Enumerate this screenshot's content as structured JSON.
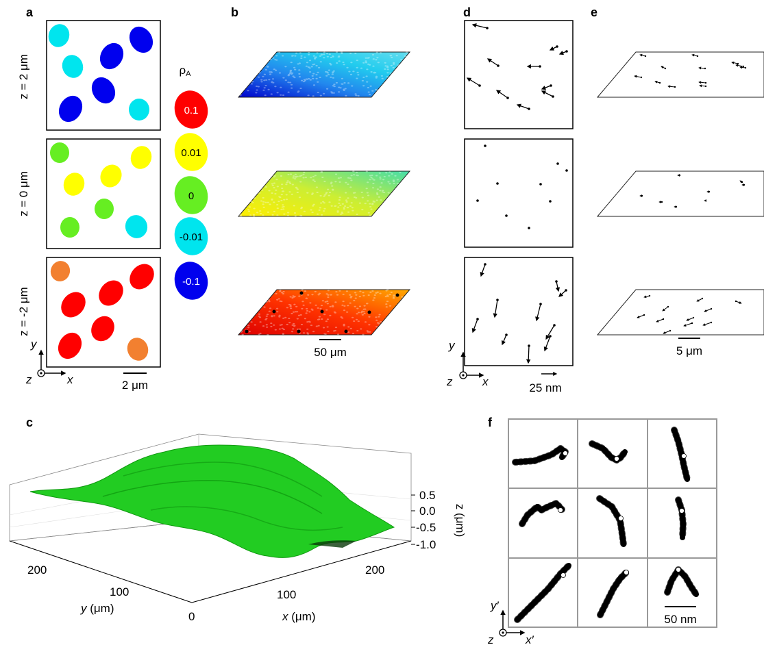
{
  "panels": {
    "a": "a",
    "b": "b",
    "c": "c",
    "d": "d",
    "e": "e",
    "f": "f"
  },
  "rows": {
    "top": "z = 2 μm",
    "mid": "z = 0 μm",
    "bot": "z = -2 μm"
  },
  "legend": {
    "title": "ρA",
    "title_main": "ρ",
    "title_sub": "A",
    "entries": [
      {
        "label": "0.1",
        "color": "#ff0000",
        "text_color": "#ffffff"
      },
      {
        "label": "0.01",
        "color": "#ffff00",
        "text_color": "#000000"
      },
      {
        "label": "0",
        "color": "#66ee22",
        "text_color": "#000000"
      },
      {
        "label": "-0.01",
        "color": "#00e5ee",
        "text_color": "#000000"
      },
      {
        "label": "-0.1",
        "color": "#0000ee",
        "text_color": "#ffffff"
      }
    ]
  },
  "axes_a": {
    "y": "y",
    "z": "z",
    "x": "x"
  },
  "scalebars": {
    "a": "2 μm",
    "b": "50 μm",
    "d": "25 nm",
    "e": "5 μm",
    "f": "50 nm"
  },
  "axes_d": {
    "y": "y",
    "z": "z",
    "x": "x"
  },
  "axes_f": {
    "y": "y′",
    "z": "z",
    "x": "x′"
  },
  "surface_c": {
    "z_ticks": [
      "0.5",
      "0.0",
      "-0.5",
      "-1.0"
    ],
    "z_label": "z (μm)",
    "y_ticks": [
      "200",
      "100",
      "0"
    ],
    "y_label_var": "y",
    "y_label_unit": " (μm)",
    "x_ticks": [
      "100",
      "200"
    ],
    "x_label_var": "x",
    "x_label_unit": " (μm)",
    "surface_color": "#22cc22"
  },
  "colors": {
    "cyan": "#00e5ee",
    "blue": "#0000ee",
    "green": "#66ee22",
    "yellow": "#ffff00",
    "red": "#ff0000",
    "orange": "#f28030"
  }
}
